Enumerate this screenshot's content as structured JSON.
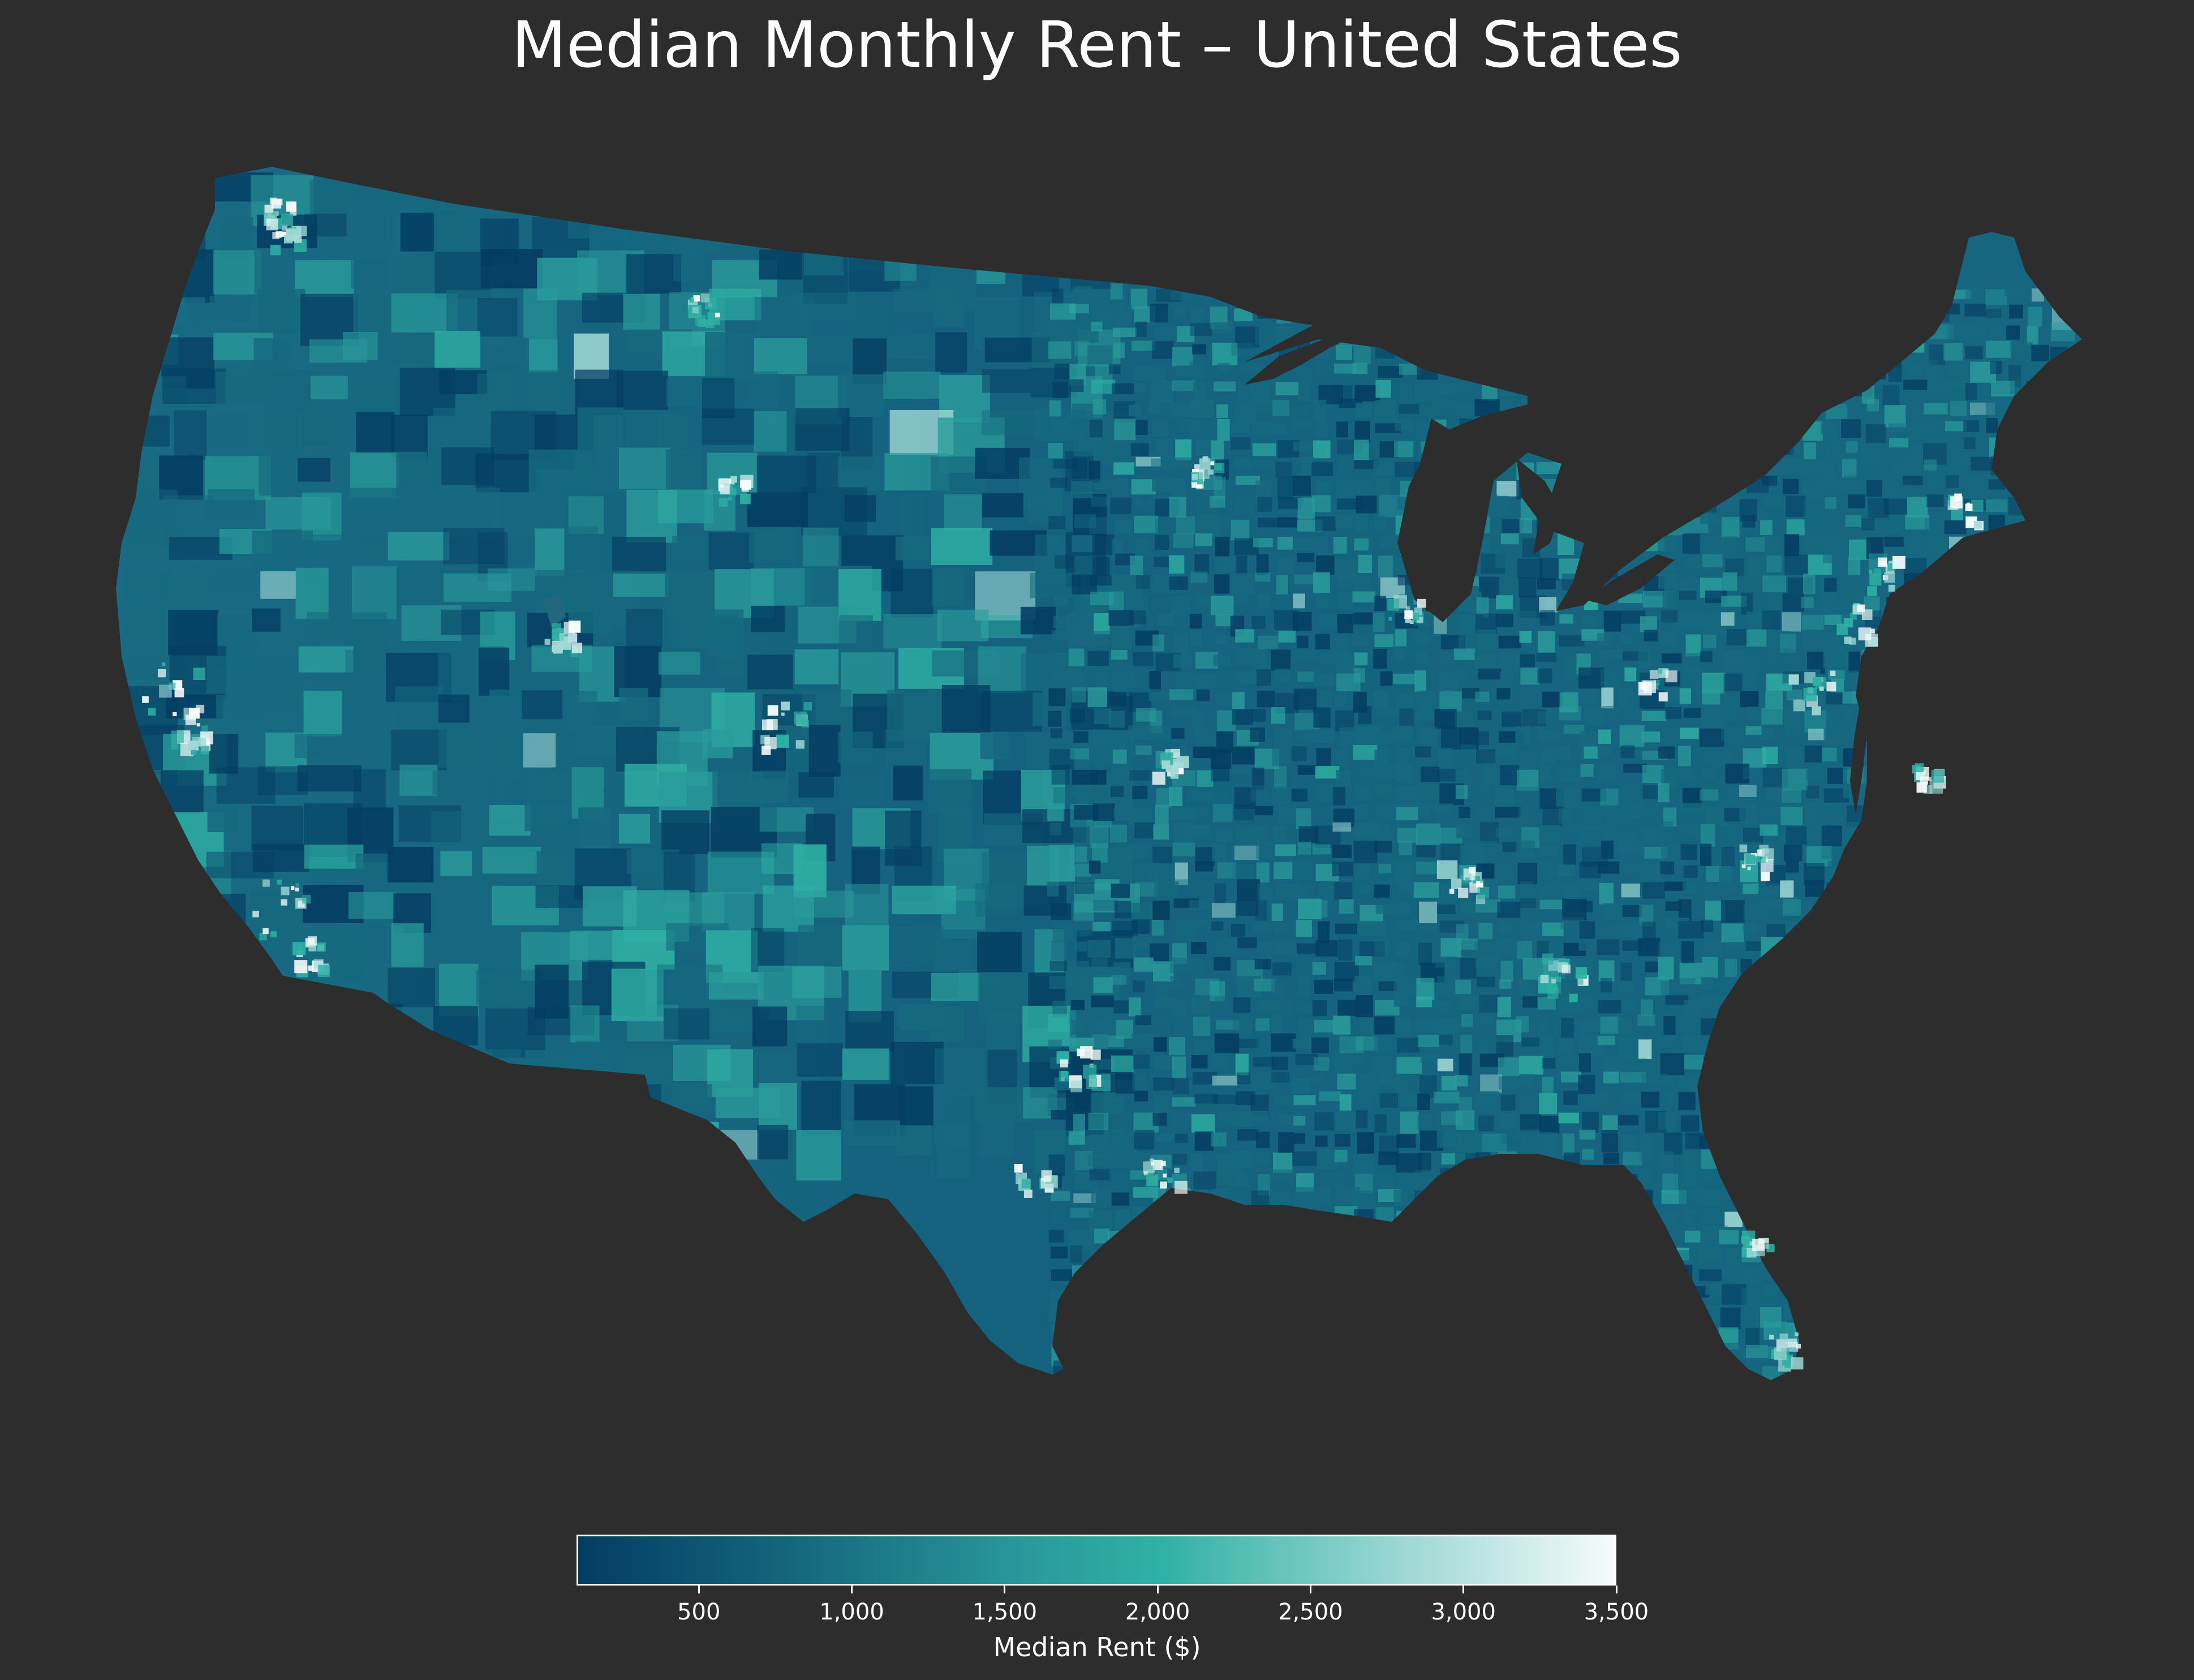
{
  "title": "Median Monthly Rent – United States",
  "map": {
    "region": "Contiguous United States",
    "type": "choropleth",
    "background_color": "#2d2d2d",
    "water_color": "#2d2d2d"
  },
  "colorbar": {
    "label": "Median Rent ($)",
    "min": 100,
    "max": 3500,
    "ticks": [
      {
        "value": 500,
        "label": "500"
      },
      {
        "value": 1000,
        "label": "1,000"
      },
      {
        "value": 1500,
        "label": "1,500"
      },
      {
        "value": 2000,
        "label": "2,000"
      },
      {
        "value": 2500,
        "label": "2,500"
      },
      {
        "value": 3000,
        "label": "3,000"
      },
      {
        "value": 3500,
        "label": "3,500"
      }
    ],
    "colors": [
      "#043d62",
      "#16697f",
      "#2a9b9b",
      "#2fb0a4",
      "#9fd8d5",
      "#f6fcfb"
    ]
  },
  "chart_data": {
    "type": "choropleth",
    "title": "Median Monthly Rent – United States",
    "legend_label": "Median Rent ($)",
    "value_range": [
      100,
      3500
    ],
    "colorbar_ticks": [
      500,
      1000,
      1500,
      2000,
      2500,
      3000,
      3500
    ],
    "colormap": [
      "#043d62",
      "#16697f",
      "#2a9b9b",
      "#2fb0a4",
      "#9fd8d5",
      "#f6fcfb"
    ]
  }
}
